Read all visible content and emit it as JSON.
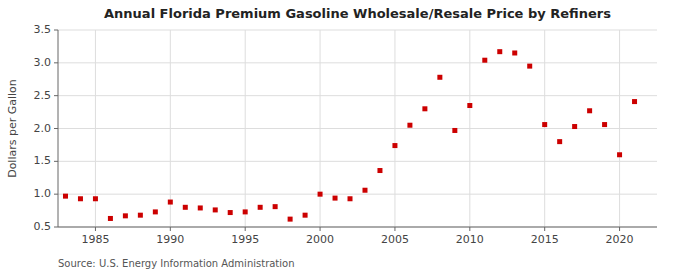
{
  "chart_data": {
    "type": "scatter",
    "title": "Annual Florida Premium Gasoline Wholesale/Resale Price by Refiners",
    "ylabel": "Dollars per Gallon",
    "annotations": [
      "Source: U.S. Energy Information Administration"
    ],
    "x": [
      1983,
      1984,
      1985,
      1986,
      1987,
      1988,
      1989,
      1990,
      1991,
      1992,
      1993,
      1994,
      1995,
      1996,
      1997,
      1998,
      1999,
      2000,
      2001,
      2002,
      2003,
      2004,
      2005,
      2006,
      2007,
      2008,
      2009,
      2010,
      2011,
      2012,
      2013,
      2014,
      2015,
      2016,
      2017,
      2018,
      2019,
      2020,
      2021
    ],
    "values": [
      0.97,
      0.93,
      0.93,
      0.63,
      0.67,
      0.68,
      0.73,
      0.88,
      0.8,
      0.79,
      0.76,
      0.72,
      0.73,
      0.8,
      0.81,
      0.62,
      0.68,
      1.0,
      0.94,
      0.93,
      1.06,
      1.36,
      1.74,
      2.05,
      2.3,
      2.78,
      1.97,
      2.35,
      3.04,
      3.17,
      3.15,
      2.95,
      2.06,
      1.8,
      2.03,
      2.27,
      2.06,
      1.6,
      2.41
    ],
    "color": "#cc0000",
    "marker": "square",
    "xlim": [
      1982.5,
      2022.5
    ],
    "ylim": [
      0.5,
      3.5
    ],
    "xticks": [
      1985,
      1990,
      1995,
      2000,
      2005,
      2010,
      2015,
      2020
    ],
    "yticks": [
      0.5,
      {
        "value": 1.0,
        "label": "1.0"
      },
      1.5,
      {
        "value": 2.0,
        "label": "2.0"
      },
      2.5,
      {
        "value": 3.0,
        "label": "3.0"
      },
      3.5
    ],
    "grid": true
  }
}
